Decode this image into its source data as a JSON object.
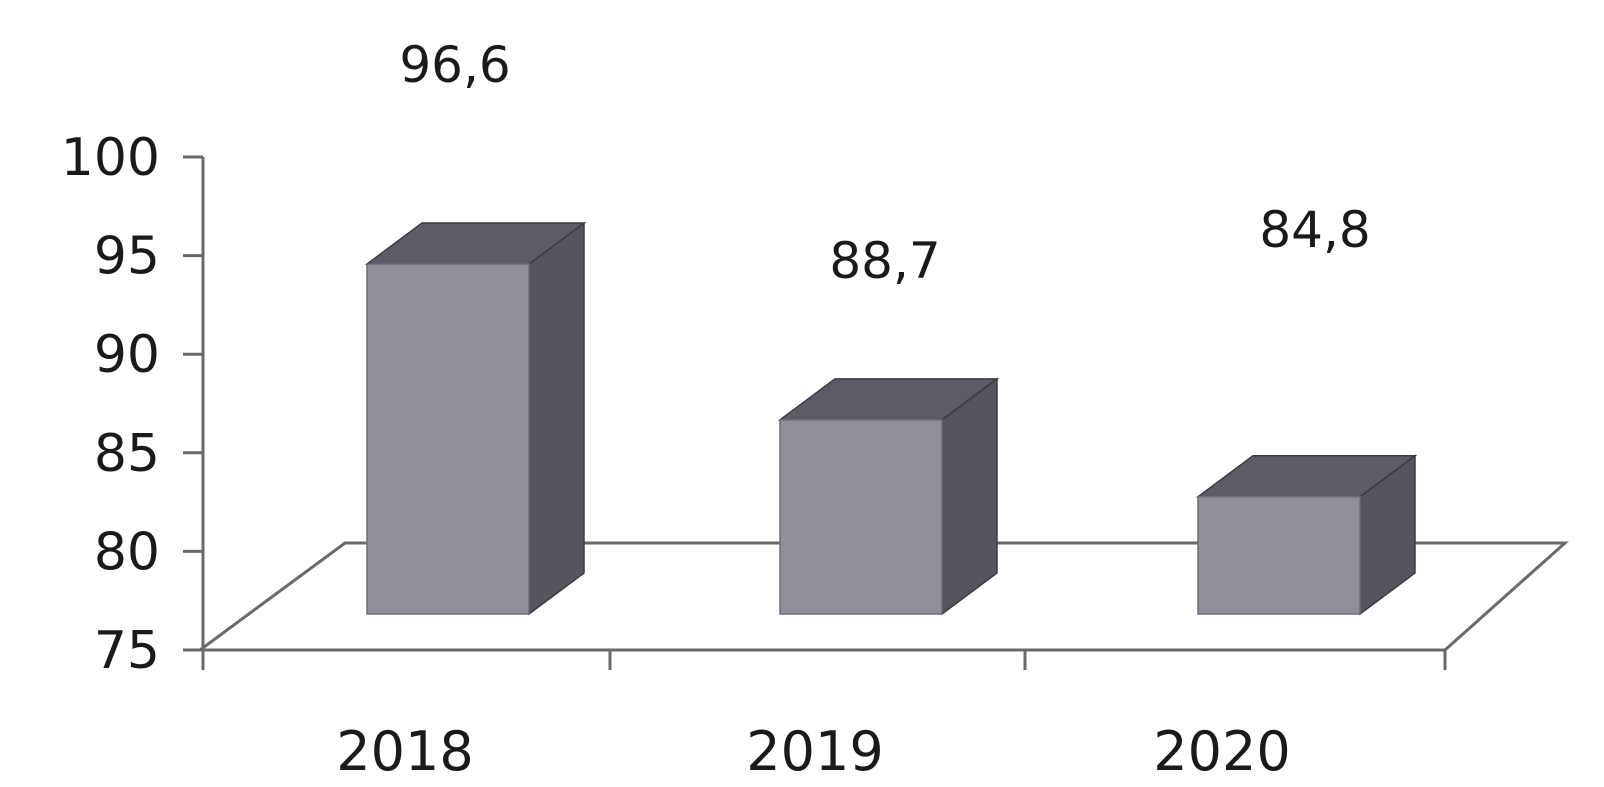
{
  "chart_data": {
    "type": "bar",
    "style": "3d",
    "categories": [
      "2018",
      "2019",
      "2020"
    ],
    "values": [
      96.6,
      88.7,
      84.8
    ],
    "value_labels": [
      "96,6",
      "88,7",
      "84,8"
    ],
    "ylim": [
      75,
      100
    ],
    "yticks": [
      100,
      95,
      90,
      85,
      80,
      75
    ],
    "grid": false,
    "legend": "none",
    "colors": {
      "bar_front": "#8f8f98",
      "bar_side": "#55555f",
      "bar_top": "#5c5c66",
      "axis": "#6a6a6a"
    }
  }
}
